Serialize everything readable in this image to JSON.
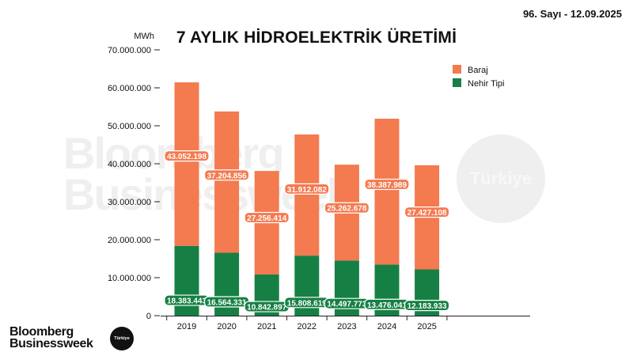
{
  "header": {
    "issue": "96. Sayı - 12.09.2025",
    "title": "7 AYLIK HİDROELEKTRİK ÜRETİMİ"
  },
  "brand": {
    "line1": "Bloomberg",
    "line2": "Businessweek",
    "badge": "Türkiye"
  },
  "watermark": {
    "line1": "Bloomberg",
    "line2": "Businessweek",
    "badge": "Türkiye"
  },
  "colors": {
    "baraj": "#F47A4F",
    "nehir": "#168044",
    "axis": "#222222"
  },
  "chart_data": {
    "type": "bar",
    "stacked": true,
    "title": "7 AYLIK HİDROELEKTRİK ÜRETİMİ",
    "ylabel": "MWh",
    "xlabel": "",
    "ylim": [
      0,
      70000000
    ],
    "yticks": [
      "0",
      "10.000.000",
      "20.000.000",
      "30.000.000",
      "40.000.000",
      "50.000.000",
      "60.000.000",
      "70.000.000"
    ],
    "categories": [
      "2019",
      "2020",
      "2021",
      "2022",
      "2023",
      "2024",
      "2025"
    ],
    "legend_position": "top-right",
    "grid": false,
    "series": [
      {
        "name": "Nehir Tipi",
        "color": "#168044",
        "values": [
          18383443,
          16564331,
          10842897,
          15808619,
          14497773,
          13476041,
          12183933
        ],
        "labels": [
          "18.383.443",
          "16.564.331",
          "10.842.897",
          "15.808.619",
          "14.497.773",
          "13.476.041",
          "12.183.933"
        ]
      },
      {
        "name": "Baraj",
        "color": "#F47A4F",
        "values": [
          43052198,
          37204856,
          27256414,
          31912082,
          25262678,
          38387989,
          27427108
        ],
        "labels": [
          "43.052.198",
          "37.204.856",
          "27.256.414",
          "31.912.082",
          "25.262.678",
          "38.387.989",
          "27.427.108"
        ]
      }
    ]
  }
}
